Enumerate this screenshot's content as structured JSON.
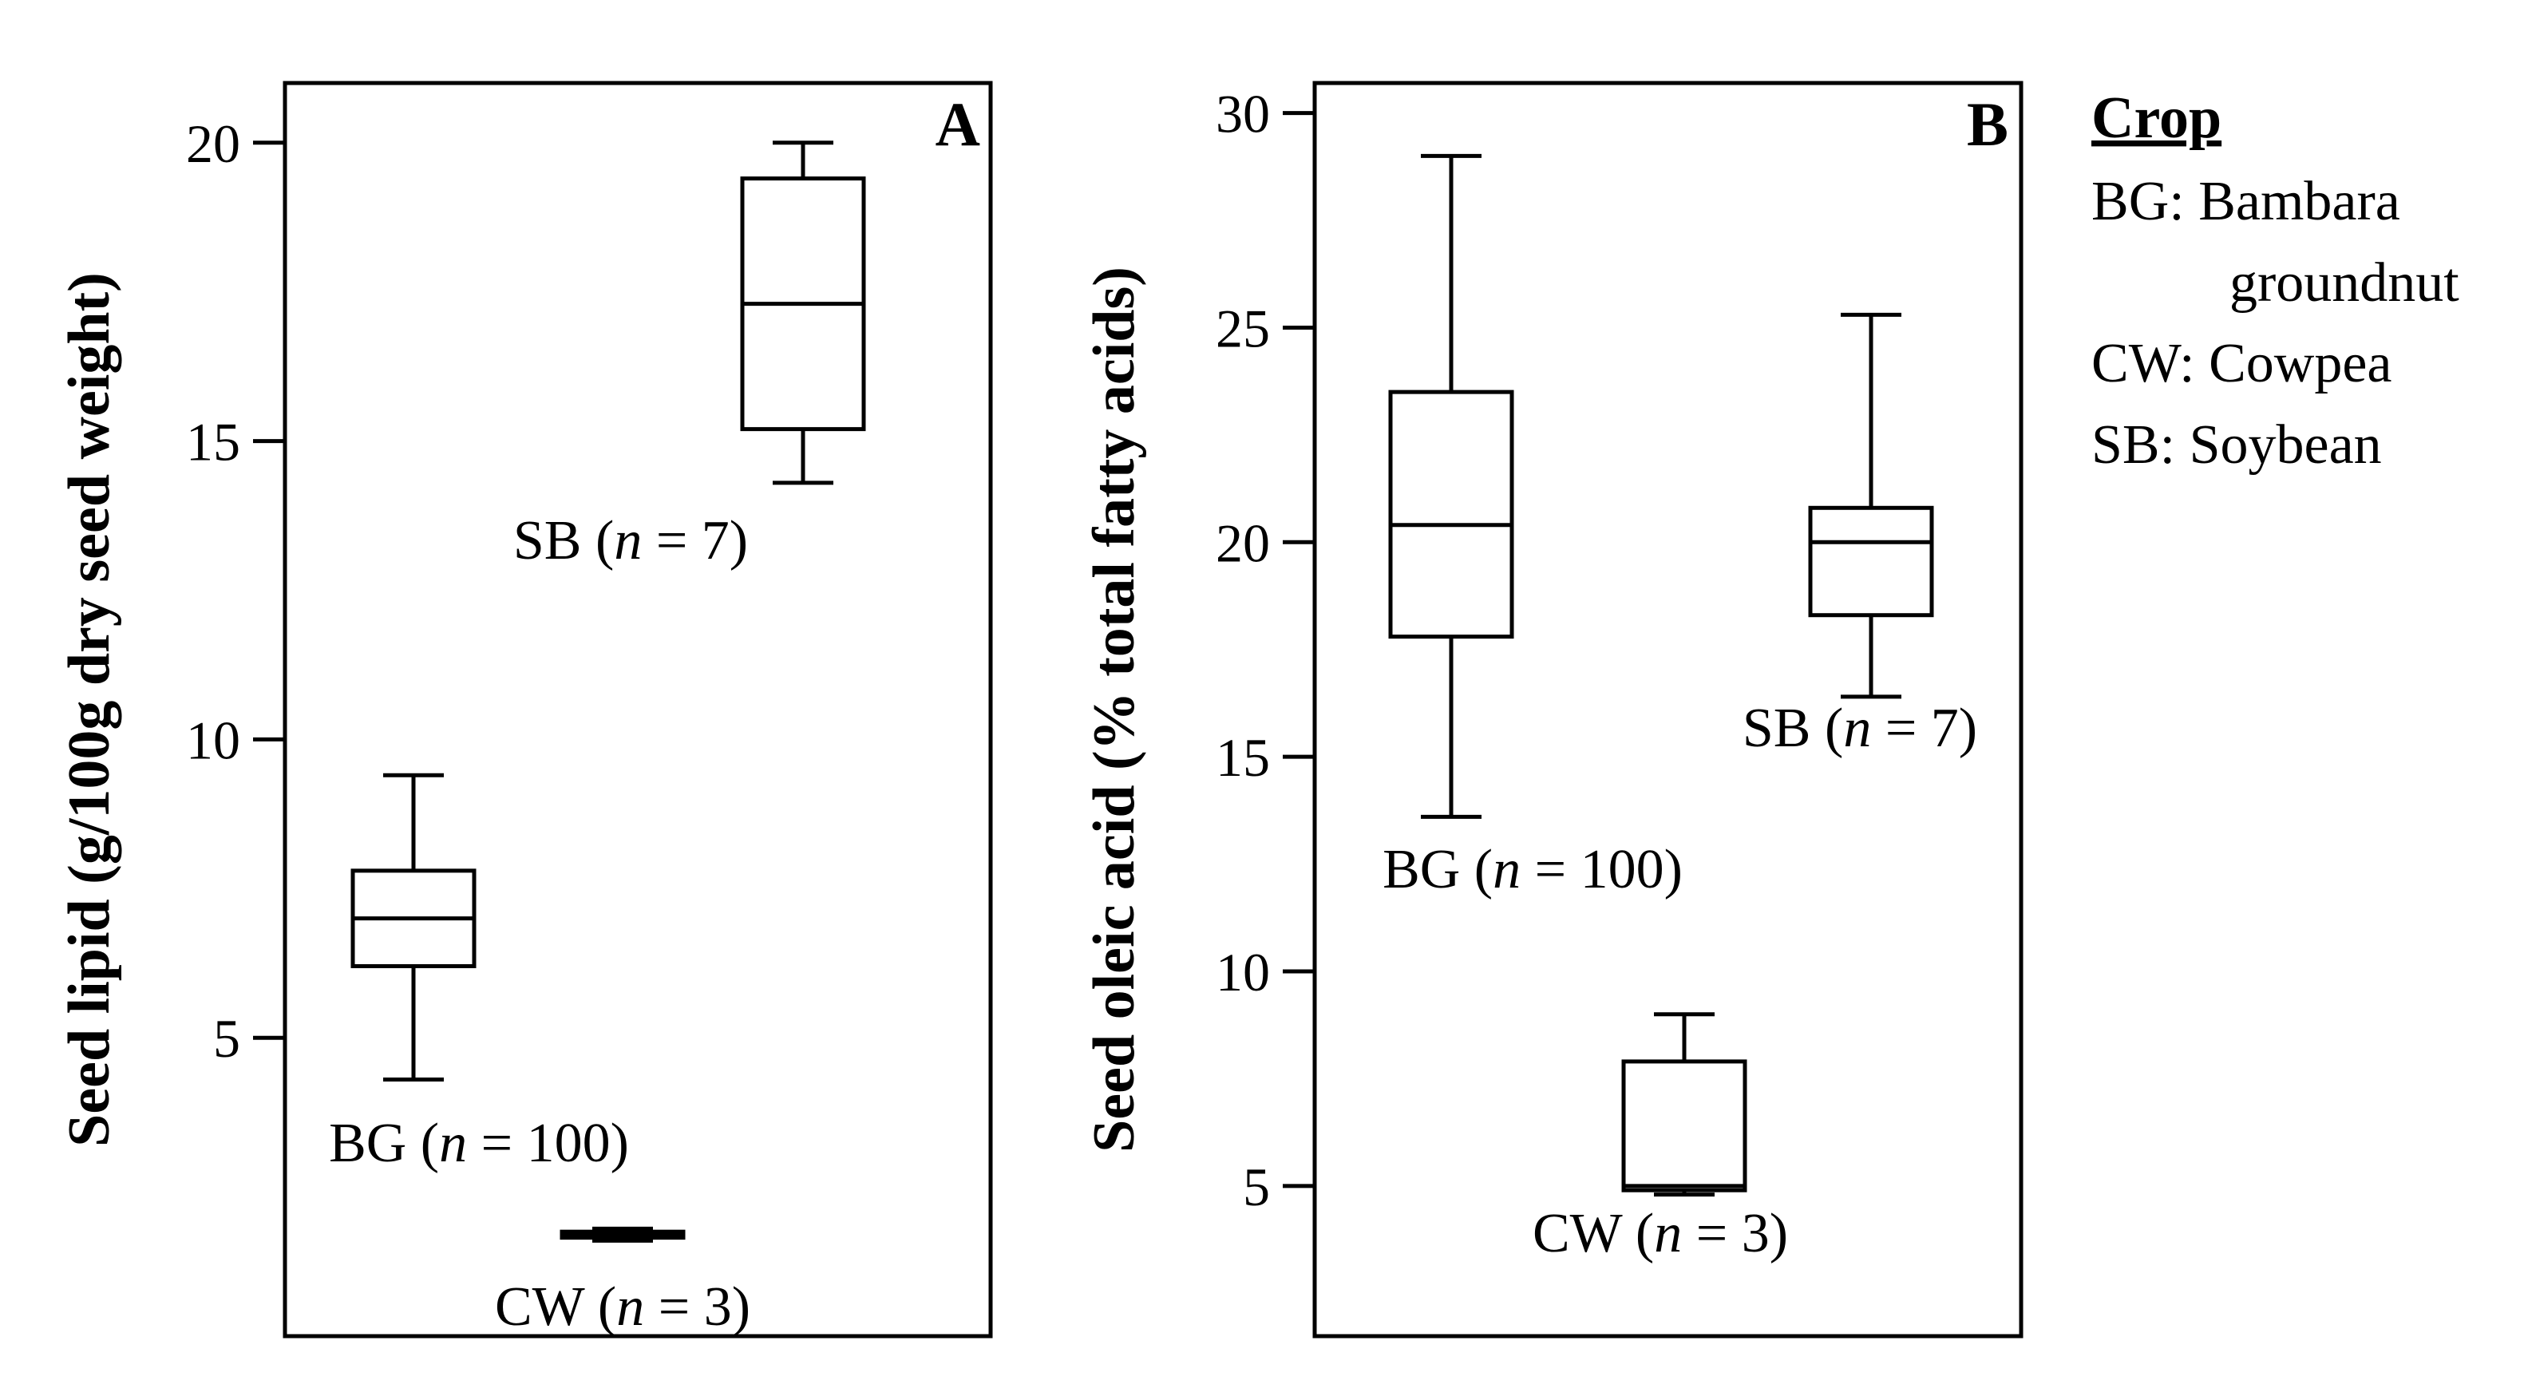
{
  "legend": {
    "title": "Crop",
    "items": [
      {
        "line1": "BG: Bambara",
        "line2": "groundnut"
      },
      {
        "line1": "CW: Cowpea"
      },
      {
        "line1": "SB: Soybean"
      }
    ]
  },
  "chart_data": [
    {
      "type": "box",
      "panel": "A",
      "ylabel": "Seed lipid (g/100g dry seed weight)",
      "ylim": [
        0,
        21
      ],
      "yticks": [
        5,
        10,
        15,
        20
      ],
      "grid": false,
      "categories": [
        "BG",
        "CW",
        "SB"
      ],
      "boxes": [
        {
          "crop": "BG",
          "min": 4.3,
          "q1": 6.2,
          "median": 7.0,
          "q3": 7.8,
          "max": 9.4,
          "label_prefix": "BG (",
          "n_text": "n",
          "label_suffix": " = 100)"
        },
        {
          "crop": "CW",
          "min": 1.6,
          "q1": 1.65,
          "median": 1.7,
          "q3": 1.75,
          "max": 1.8,
          "label_prefix": "CW (",
          "n_text": "n",
          "label_suffix": " = 3)"
        },
        {
          "crop": "SB",
          "min": 14.3,
          "q1": 15.2,
          "median": 17.3,
          "q3": 19.4,
          "max": 20.0,
          "label_prefix": "SB (",
          "n_text": "n",
          "label_suffix": " = 7)"
        }
      ]
    },
    {
      "type": "box",
      "panel": "B",
      "ylabel": "Seed oleic acid (% total fatty acids)",
      "ylim": [
        1.5,
        30.7
      ],
      "yticks": [
        5,
        10,
        15,
        20,
        25,
        30
      ],
      "grid": false,
      "categories": [
        "BG",
        "CW",
        "SB"
      ],
      "boxes": [
        {
          "crop": "BG",
          "min": 13.6,
          "q1": 17.8,
          "median": 20.4,
          "q3": 23.5,
          "max": 29.0,
          "label_prefix": "BG (",
          "n_text": "n",
          "label_suffix": " = 100)"
        },
        {
          "crop": "CW",
          "min": 4.8,
          "q1": 4.9,
          "median": 5.0,
          "q3": 7.9,
          "max": 9.0,
          "label_prefix": "CW (",
          "n_text": "n",
          "label_suffix": " = 3)"
        },
        {
          "crop": "SB",
          "min": 16.4,
          "q1": 18.3,
          "median": 20.0,
          "q3": 20.8,
          "max": 25.3,
          "label_prefix": "SB (",
          "n_text": "n",
          "label_suffix": " = 7)"
        }
      ]
    }
  ]
}
